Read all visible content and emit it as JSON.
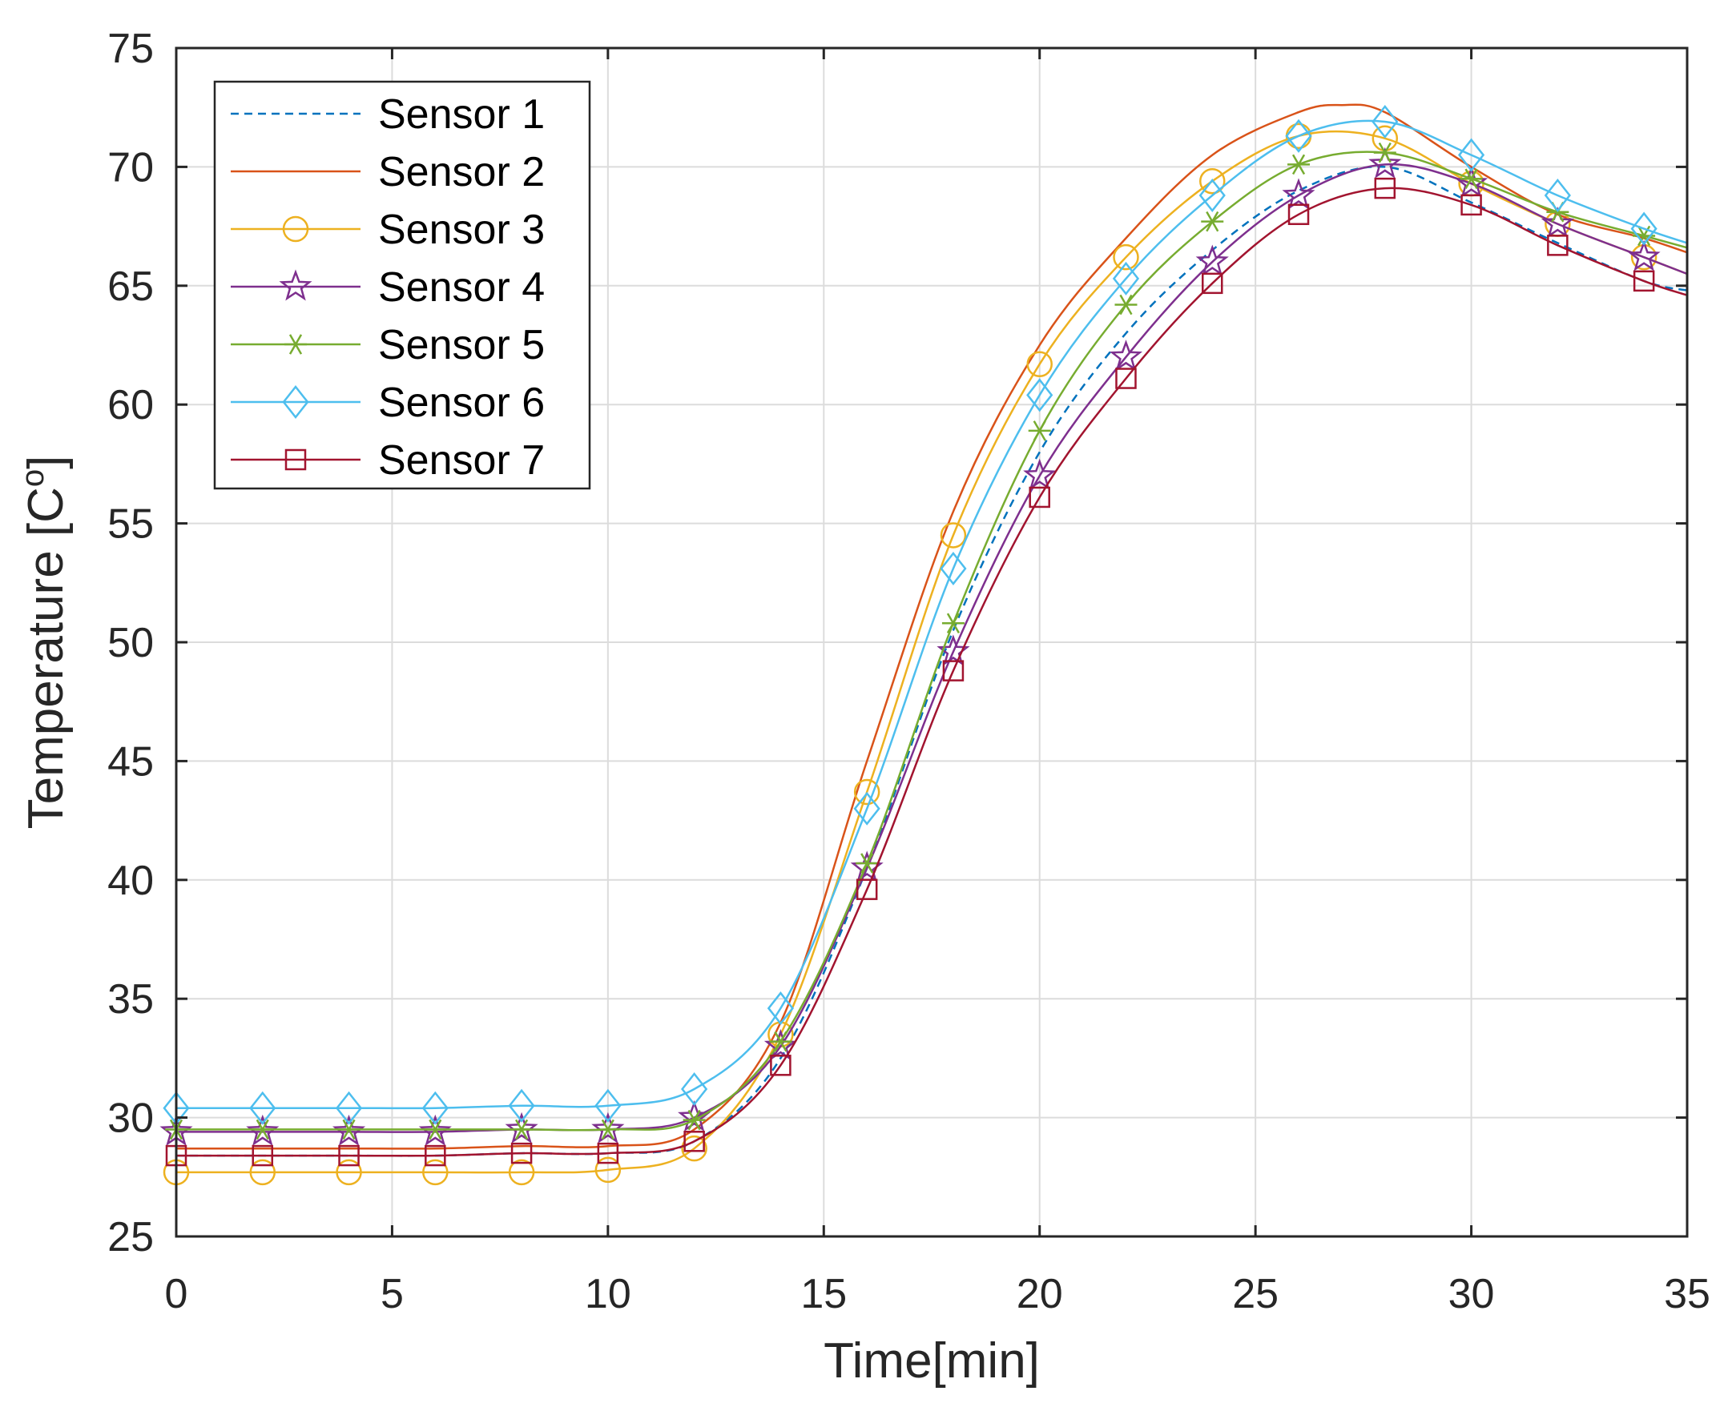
{
  "chart_data": {
    "type": "line",
    "title": "",
    "xlabel": "Time[min]",
    "ylabel_main": "Temperature [C",
    "ylabel_sup": "o",
    "ylabel_close": "]",
    "xlim": [
      0,
      35
    ],
    "ylim": [
      25,
      75
    ],
    "xticks": [
      0,
      5,
      10,
      15,
      20,
      25,
      30,
      35
    ],
    "yticks": [
      25,
      30,
      35,
      40,
      45,
      50,
      55,
      60,
      65,
      70,
      75
    ],
    "grid": true,
    "legend_position": "top-left",
    "series": [
      {
        "name": "Sensor 1",
        "color": "#0072BD",
        "dash": "dashed",
        "marker": "none",
        "x": [
          0,
          2,
          4,
          6,
          8,
          10,
          12,
          14,
          16,
          18,
          20,
          22,
          24,
          26,
          28,
          30,
          32,
          34,
          35
        ],
        "y": [
          28.4,
          28.4,
          28.4,
          28.4,
          28.5,
          28.5,
          29.0,
          32.5,
          40.5,
          50.5,
          58.0,
          63.0,
          66.5,
          69.0,
          70.0,
          68.5,
          66.8,
          65.2,
          64.8
        ]
      },
      {
        "name": "Sensor 2",
        "color": "#D95319",
        "dash": "solid",
        "marker": "none",
        "x": [
          0,
          2,
          4,
          6,
          8,
          10,
          12,
          14,
          16,
          18,
          20,
          22,
          24,
          26,
          27,
          28,
          30,
          32,
          34,
          35
        ],
        "y": [
          28.7,
          28.7,
          28.7,
          28.7,
          28.8,
          28.8,
          29.5,
          34.0,
          45.0,
          55.5,
          62.5,
          67.0,
          70.5,
          72.3,
          72.6,
          72.3,
          70.0,
          68.0,
          67.0,
          66.4
        ]
      },
      {
        "name": "Sensor 3",
        "color": "#EDB120",
        "dash": "solid",
        "marker": "circle",
        "x": [
          0,
          2,
          4,
          6,
          8,
          10,
          12,
          14,
          16,
          18,
          20,
          22,
          24,
          26,
          28,
          30,
          32,
          34,
          35
        ],
        "y": [
          27.7,
          27.7,
          27.7,
          27.7,
          27.7,
          27.8,
          28.7,
          33.5,
          43.7,
          54.5,
          61.7,
          66.2,
          69.4,
          71.3,
          71.2,
          69.3,
          67.6,
          66.2,
          65.5
        ]
      },
      {
        "name": "Sensor 4",
        "color": "#7E2F8E",
        "dash": "solid",
        "marker": "star",
        "x": [
          0,
          2,
          4,
          6,
          8,
          10,
          12,
          14,
          16,
          18,
          20,
          22,
          24,
          26,
          28,
          30,
          32,
          34,
          35
        ],
        "y": [
          29.4,
          29.4,
          29.4,
          29.4,
          29.5,
          29.5,
          30.0,
          33.0,
          40.5,
          49.6,
          57.0,
          62.0,
          66.0,
          68.8,
          70.1,
          69.3,
          67.6,
          66.2,
          65.5
        ]
      },
      {
        "name": "Sensor 5",
        "color": "#77AC30",
        "dash": "solid",
        "marker": "asterisk",
        "x": [
          0,
          2,
          4,
          6,
          8,
          10,
          12,
          14,
          16,
          18,
          20,
          22,
          24,
          26,
          28,
          30,
          32,
          34,
          35
        ],
        "y": [
          29.5,
          29.5,
          29.5,
          29.5,
          29.5,
          29.5,
          29.9,
          33.2,
          40.7,
          50.8,
          58.9,
          64.2,
          67.7,
          70.1,
          70.6,
          69.5,
          68.1,
          67.1,
          66.6
        ]
      },
      {
        "name": "Sensor 6",
        "color": "#4DBEEE",
        "dash": "solid",
        "marker": "diamond",
        "x": [
          0,
          2,
          4,
          6,
          8,
          10,
          12,
          14,
          16,
          18,
          20,
          22,
          24,
          26,
          28,
          30,
          32,
          34,
          35
        ],
        "y": [
          30.4,
          30.4,
          30.4,
          30.4,
          30.5,
          30.5,
          31.2,
          34.6,
          43.0,
          53.1,
          60.4,
          65.3,
          68.8,
          71.3,
          71.9,
          70.5,
          68.8,
          67.4,
          66.8
        ]
      },
      {
        "name": "Sensor 7",
        "color": "#A2142F",
        "dash": "solid",
        "marker": "square",
        "x": [
          0,
          2,
          4,
          6,
          8,
          10,
          12,
          14,
          16,
          18,
          20,
          22,
          24,
          26,
          28,
          30,
          32,
          34,
          35
        ],
        "y": [
          28.4,
          28.4,
          28.4,
          28.4,
          28.5,
          28.5,
          29.0,
          32.2,
          39.6,
          48.8,
          56.1,
          61.1,
          65.1,
          68.0,
          69.1,
          68.4,
          66.7,
          65.2,
          64.6
        ]
      }
    ]
  }
}
